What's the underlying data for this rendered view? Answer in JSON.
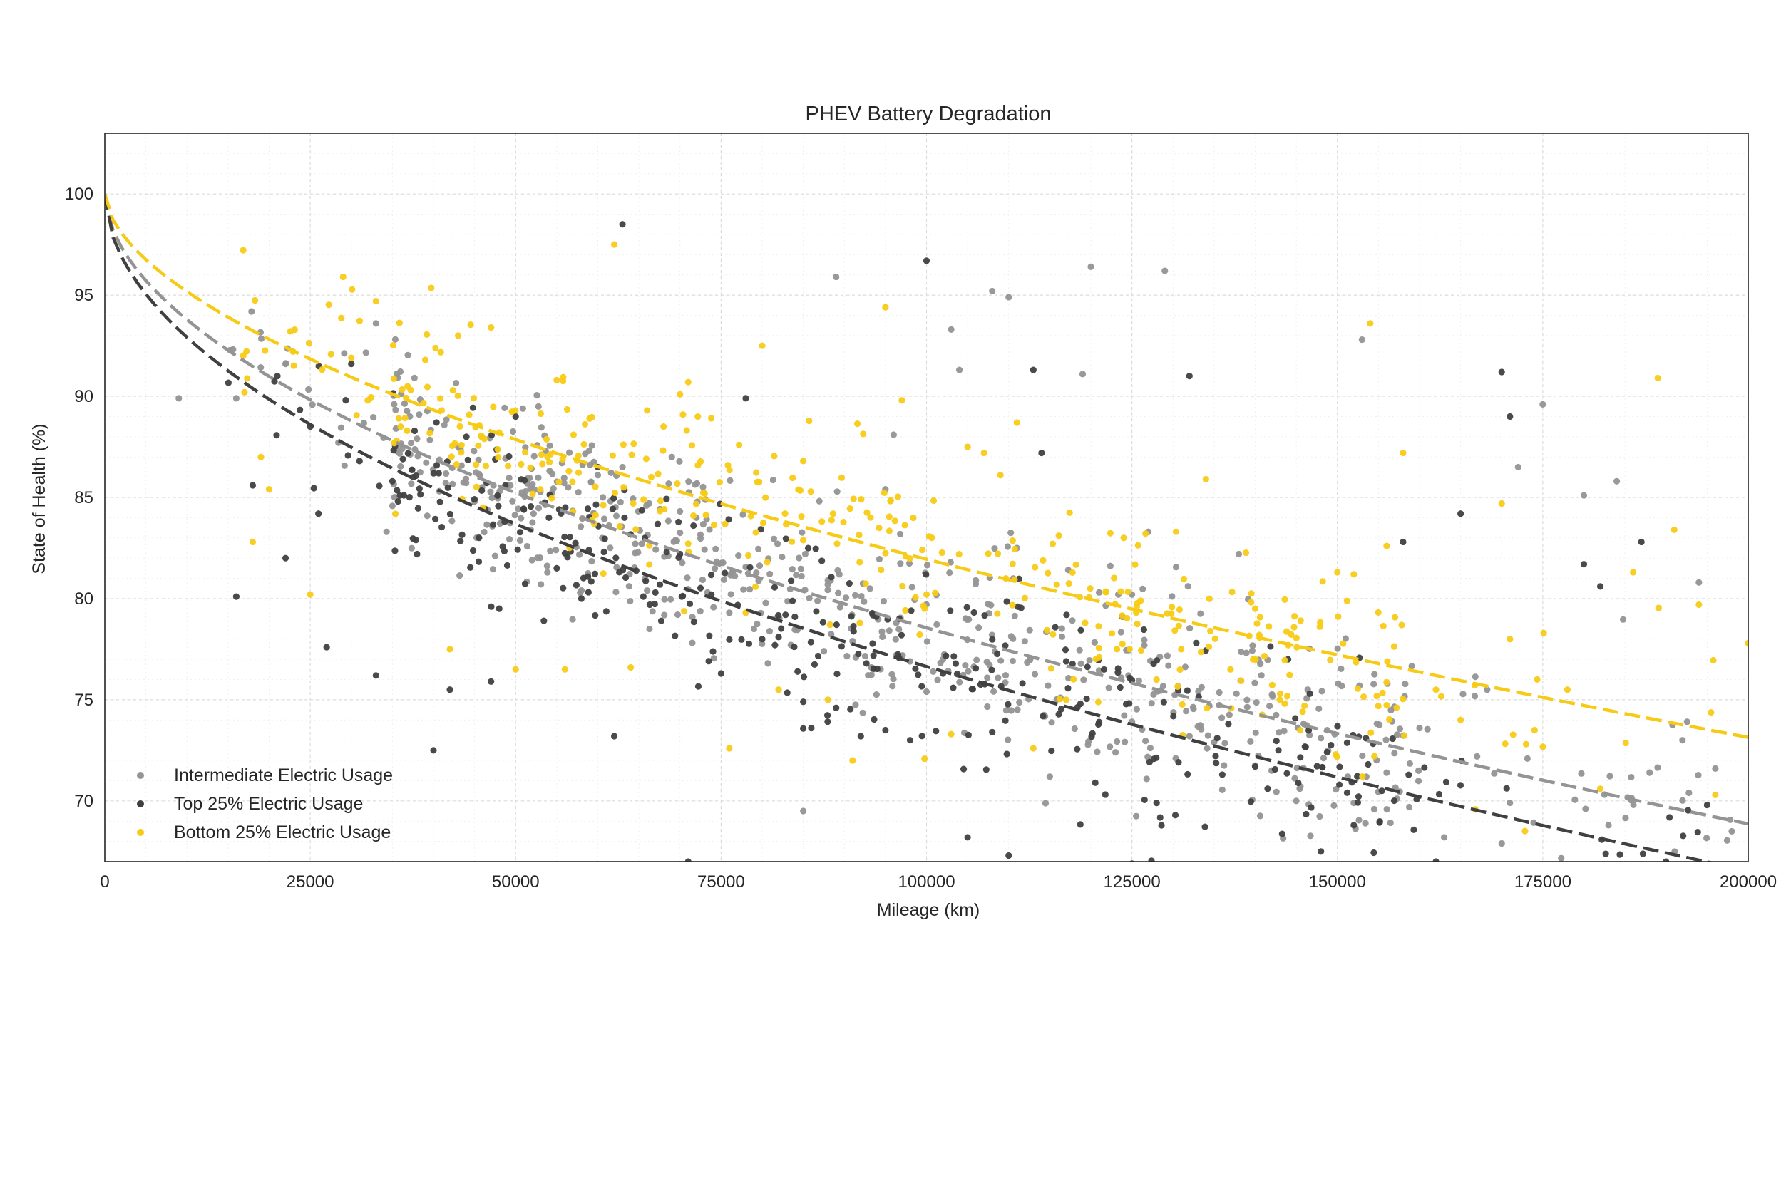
{
  "chart_data": {
    "type": "scatter",
    "title": "PHEV Battery Degradation",
    "xlabel": "Mileage (km)",
    "ylabel": "State of Health (%)",
    "xlim": [
      0,
      200000
    ],
    "ylim": [
      67,
      103
    ],
    "xticks": [
      0,
      25000,
      50000,
      75000,
      100000,
      125000,
      150000,
      175000,
      200000
    ],
    "yticks": [
      70,
      75,
      80,
      85,
      90,
      95,
      100
    ],
    "grid": true,
    "legend_position": "lower-left",
    "trend_form": "SoH = 100 - a * (mileage / 1000)^b",
    "series": [
      {
        "name": "Intermediate Electric Usage",
        "color": "#949494",
        "trend": {
          "a": 1.8,
          "b": 0.538
        },
        "samples": [
          [
            9000,
            89.9
          ],
          [
            16000,
            89.9
          ],
          [
            22000,
            91.6
          ],
          [
            33000,
            93.6
          ],
          [
            38000,
            87.9
          ],
          [
            43000,
            87.5
          ],
          [
            45000,
            84.8
          ],
          [
            52000,
            81.9
          ],
          [
            58000,
            80.4
          ],
          [
            60000,
            86.1
          ],
          [
            63000,
            86.5
          ],
          [
            66000,
            80.4
          ],
          [
            69000,
            87.0
          ],
          [
            72000,
            84.0
          ],
          [
            76000,
            79.3
          ],
          [
            79000,
            78.5
          ],
          [
            82000,
            79.0
          ],
          [
            85000,
            69.5
          ],
          [
            88000,
            80.9
          ],
          [
            89000,
            95.9
          ],
          [
            91000,
            77.9
          ],
          [
            95000,
            85.4
          ],
          [
            96000,
            88.1
          ],
          [
            98000,
            76.9
          ],
          [
            100000,
            75.4
          ],
          [
            102000,
            77.0
          ],
          [
            103000,
            93.3
          ],
          [
            104000,
            91.3
          ],
          [
            106000,
            80.9
          ],
          [
            108000,
            95.2
          ],
          [
            110000,
            94.9
          ],
          [
            111000,
            82.5
          ],
          [
            115000,
            71.2
          ],
          [
            119000,
            91.1
          ],
          [
            120000,
            96.4
          ],
          [
            123000,
            72.4
          ],
          [
            125000,
            80.2
          ],
          [
            127000,
            83.3
          ],
          [
            129000,
            96.2
          ],
          [
            132000,
            73.2
          ],
          [
            135000,
            72.9
          ],
          [
            138000,
            82.2
          ],
          [
            142000,
            71.5
          ],
          [
            145000,
            70.0
          ],
          [
            148000,
            73.1
          ],
          [
            152000,
            69.9
          ],
          [
            153000,
            92.8
          ],
          [
            156000,
            71.4
          ],
          [
            160000,
            73.6
          ],
          [
            163000,
            68.2
          ],
          [
            167000,
            72.2
          ],
          [
            170000,
            67.9
          ],
          [
            172000,
            86.5
          ],
          [
            175000,
            89.6
          ],
          [
            180000,
            85.1
          ],
          [
            183000,
            68.8
          ],
          [
            184000,
            85.8
          ],
          [
            188000,
            71.4
          ],
          [
            192000,
            73.0
          ],
          [
            194000,
            80.8
          ],
          [
            196000,
            71.6
          ],
          [
            198000,
            68.5
          ]
        ]
      },
      {
        "name": "Top 25% Electric Usage",
        "color": "#404040",
        "trend": {
          "a": 2.15,
          "b": 0.518
        },
        "samples": [
          [
            16000,
            80.1
          ],
          [
            18000,
            85.6
          ],
          [
            21000,
            91.0
          ],
          [
            22000,
            82.0
          ],
          [
            25000,
            88.5
          ],
          [
            26000,
            84.2
          ],
          [
            27000,
            77.6
          ],
          [
            30000,
            91.6
          ],
          [
            31000,
            86.8
          ],
          [
            33000,
            76.2
          ],
          [
            35000,
            85.8
          ],
          [
            38000,
            82.2
          ],
          [
            40000,
            72.5
          ],
          [
            42000,
            75.5
          ],
          [
            44000,
            88.0
          ],
          [
            47000,
            75.9
          ],
          [
            48000,
            79.5
          ],
          [
            50000,
            89.0
          ],
          [
            51000,
            84.4
          ],
          [
            55000,
            81.5
          ],
          [
            58000,
            80.0
          ],
          [
            60000,
            86.5
          ],
          [
            62000,
            73.2
          ],
          [
            63000,
            98.5
          ],
          [
            67000,
            80.3
          ],
          [
            70000,
            82.2
          ],
          [
            71000,
            67.0
          ],
          [
            75000,
            76.3
          ],
          [
            78000,
            89.9
          ],
          [
            80000,
            78.0
          ],
          [
            82000,
            78.1
          ],
          [
            85000,
            74.9
          ],
          [
            89000,
            74.6
          ],
          [
            92000,
            73.2
          ],
          [
            95000,
            73.5
          ],
          [
            98000,
            73.0
          ],
          [
            100000,
            96.7
          ],
          [
            102000,
            76.3
          ],
          [
            105000,
            68.2
          ],
          [
            108000,
            73.4
          ],
          [
            110000,
            67.3
          ],
          [
            113000,
            91.3
          ],
          [
            114000,
            87.2
          ],
          [
            117000,
            76.9
          ],
          [
            121000,
            73.9
          ],
          [
            125000,
            66.9
          ],
          [
            128000,
            69.9
          ],
          [
            132000,
            91.0
          ],
          [
            136000,
            71.3
          ],
          [
            140000,
            71.7
          ],
          [
            144000,
            77.0
          ],
          [
            148000,
            67.5
          ],
          [
            152000,
            68.8
          ],
          [
            158000,
            82.8
          ],
          [
            162000,
            67.0
          ],
          [
            165000,
            84.2
          ],
          [
            170000,
            91.2
          ],
          [
            171000,
            89.0
          ],
          [
            178000,
            66.8
          ],
          [
            180000,
            81.7
          ],
          [
            182000,
            80.6
          ],
          [
            187000,
            82.8
          ],
          [
            190000,
            67.0
          ],
          [
            195000,
            69.8
          ]
        ]
      },
      {
        "name": "Bottom 25% Electric Usage",
        "color": "#f7cb15",
        "trend": {
          "a": 1.29,
          "b": 0.573
        },
        "samples": [
          [
            17000,
            90.2
          ],
          [
            18000,
            82.8
          ],
          [
            19000,
            87.0
          ],
          [
            20000,
            85.4
          ],
          [
            25000,
            80.2
          ],
          [
            29000,
            95.9
          ],
          [
            30000,
            91.9
          ],
          [
            32000,
            89.8
          ],
          [
            33000,
            94.7
          ],
          [
            36000,
            88.5
          ],
          [
            39000,
            91.8
          ],
          [
            41000,
            89.3
          ],
          [
            42000,
            77.5
          ],
          [
            43000,
            93.0
          ],
          [
            46000,
            84.5
          ],
          [
            47000,
            93.4
          ],
          [
            48000,
            88.2
          ],
          [
            50000,
            76.5
          ],
          [
            53000,
            85.4
          ],
          [
            55000,
            90.8
          ],
          [
            56000,
            76.5
          ],
          [
            59000,
            88.9
          ],
          [
            62000,
            97.5
          ],
          [
            64000,
            76.6
          ],
          [
            66000,
            89.3
          ],
          [
            68000,
            88.5
          ],
          [
            70000,
            90.1
          ],
          [
            71000,
            90.7
          ],
          [
            73000,
            85.2
          ],
          [
            76000,
            72.6
          ],
          [
            78000,
            79.3
          ],
          [
            80000,
            92.5
          ],
          [
            82000,
            75.5
          ],
          [
            85000,
            86.8
          ],
          [
            88000,
            75.0
          ],
          [
            91000,
            72.0
          ],
          [
            95000,
            94.4
          ],
          [
            97000,
            89.8
          ],
          [
            100000,
            80.2
          ],
          [
            103000,
            73.3
          ],
          [
            105000,
            87.5
          ],
          [
            107000,
            87.2
          ],
          [
            109000,
            86.1
          ],
          [
            111000,
            88.7
          ],
          [
            113000,
            72.6
          ],
          [
            117000,
            75.0
          ],
          [
            121000,
            77.1
          ],
          [
            124000,
            83.0
          ],
          [
            128000,
            76.0
          ],
          [
            131000,
            77.5
          ],
          [
            134000,
            85.9
          ],
          [
            137000,
            76.5
          ],
          [
            140000,
            79.5
          ],
          [
            143000,
            75.0
          ],
          [
            146000,
            74.7
          ],
          [
            150000,
            81.3
          ],
          [
            152000,
            81.2
          ],
          [
            154000,
            93.6
          ],
          [
            156000,
            82.6
          ],
          [
            158000,
            87.2
          ],
          [
            162000,
            75.5
          ],
          [
            165000,
            74.0
          ],
          [
            170000,
            84.7
          ],
          [
            171000,
            78.0
          ],
          [
            174000,
            73.5
          ],
          [
            178000,
            75.5
          ],
          [
            182000,
            70.6
          ],
          [
            186000,
            81.3
          ],
          [
            189000,
            90.9
          ],
          [
            191000,
            83.4
          ],
          [
            194000,
            79.7
          ],
          [
            196000,
            70.3
          ],
          [
            200000,
            77.8
          ]
        ]
      }
    ]
  }
}
